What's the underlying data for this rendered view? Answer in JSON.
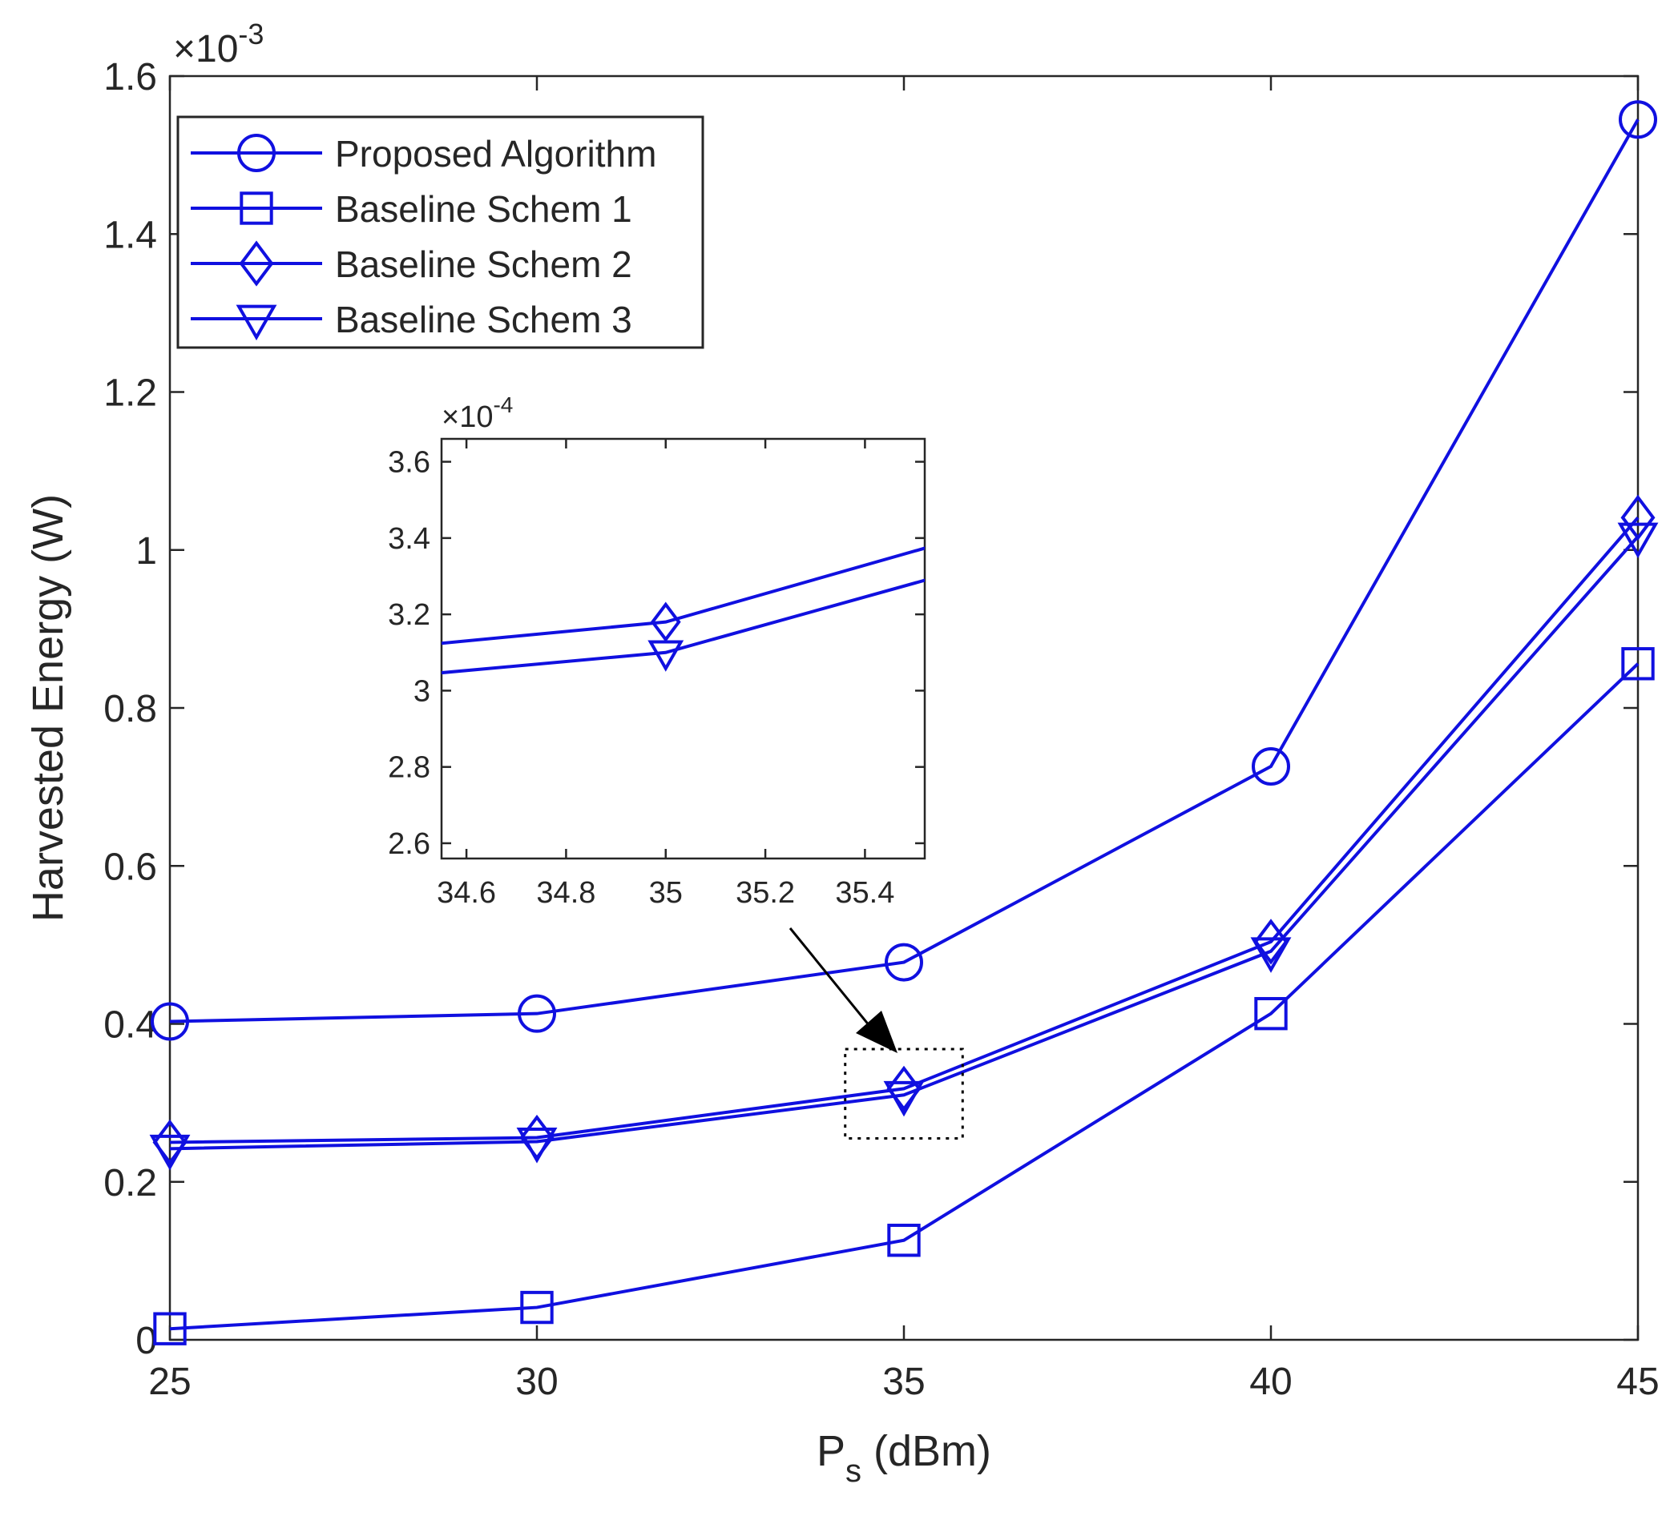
{
  "chart_data": {
    "type": "line",
    "xlabel_main": "P",
    "xlabel_sub": "s",
    "xlabel_rest": " (dBm)",
    "ylabel": "Harvested Energy (W)",
    "exponent_base": "×10",
    "exponent_power": "-3",
    "xlim": [
      25,
      45
    ],
    "ylim": [
      0,
      0.0016
    ],
    "x_ticks": [
      25,
      30,
      35,
      40,
      45
    ],
    "y_ticks": [
      0,
      0.0002,
      0.0004,
      0.0006,
      0.0008,
      0.001,
      0.0012,
      0.0014,
      0.0016
    ],
    "y_tick_labels": [
      "0",
      "0.2",
      "0.4",
      "0.6",
      "0.8",
      "1",
      "1.2",
      "1.4",
      "1.6"
    ],
    "x": [
      25,
      30,
      35,
      40,
      45
    ],
    "line_color": "#1010e0",
    "legend_position": "top-left",
    "series": [
      {
        "name": "Proposed Algorithm",
        "marker": "circle",
        "values": [
          0.000403,
          0.000413,
          0.000478,
          0.000726,
          0.001545
        ]
      },
      {
        "name": "Baseline Schem 1",
        "marker": "square",
        "values": [
          1.4e-05,
          4.1e-05,
          0.000126,
          0.000413,
          0.000856
        ]
      },
      {
        "name": "Baseline Schem 2",
        "marker": "diamond",
        "values": [
          0.00025,
          0.000256,
          0.000318,
          0.000504,
          0.001041
        ]
      },
      {
        "name": "Baseline Schem 3",
        "marker": "triangle-down",
        "values": [
          0.000242,
          0.000251,
          0.00031,
          0.000492,
          0.001017
        ]
      }
    ],
    "inset": {
      "xlim": [
        34.55,
        35.52
      ],
      "ylim": [
        0.000256,
        0.000366
      ],
      "x_ticks": [
        34.6,
        34.8,
        35,
        35.2,
        35.4
      ],
      "x_tick_labels": [
        "34.6",
        "34.8",
        "35",
        "35.2",
        "35.4"
      ],
      "y_ticks": [
        0.00026,
        0.00028,
        0.0003,
        0.00032,
        0.00034,
        0.00036
      ],
      "y_tick_labels": [
        "2.6",
        "2.8",
        "3",
        "3.2",
        "3.4",
        "3.6"
      ],
      "exponent_base": "×10",
      "exponent_power": "-4",
      "zoom_region": {
        "x": [
          34.2,
          35.8
        ],
        "y": [
          0.000255,
          0.000368
        ]
      }
    }
  }
}
